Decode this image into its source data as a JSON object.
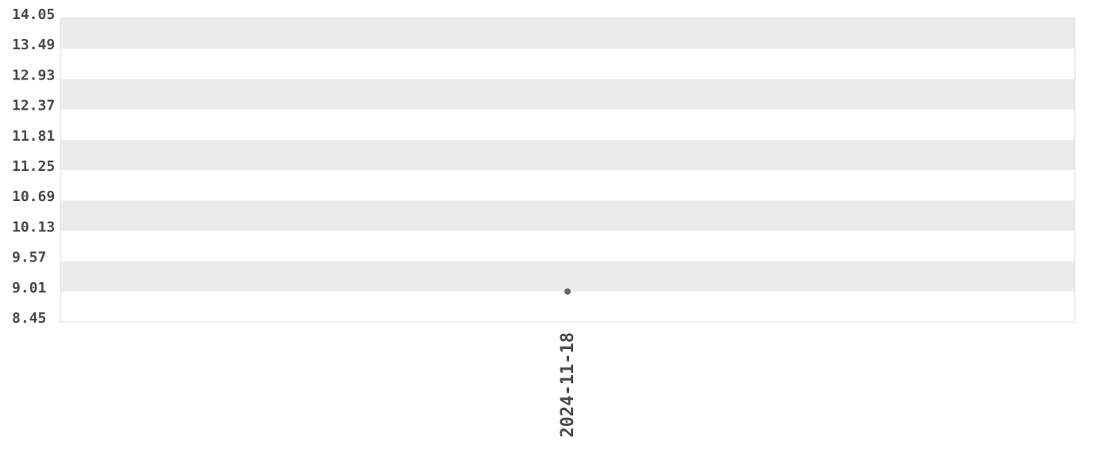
{
  "chart_data": {
    "type": "scatter",
    "title": "",
    "xlabel": "",
    "ylabel": "",
    "ylim": [
      8.45,
      14.05
    ],
    "y_ticks": [
      "14.05",
      "13.49",
      "12.93",
      "12.37",
      "11.81",
      "11.25",
      "10.69",
      "10.13",
      "9.57",
      "9.01",
      "8.45"
    ],
    "x_ticks": [
      "2024-11-18"
    ],
    "points": [
      {
        "x": "2024-11-18",
        "y": 9.01
      }
    ],
    "grid": "alternating horizontal bands",
    "colors": {
      "band": "#ebebeb",
      "point": "#666666",
      "text": "#4a4a4a",
      "border": "#dddddd"
    }
  }
}
